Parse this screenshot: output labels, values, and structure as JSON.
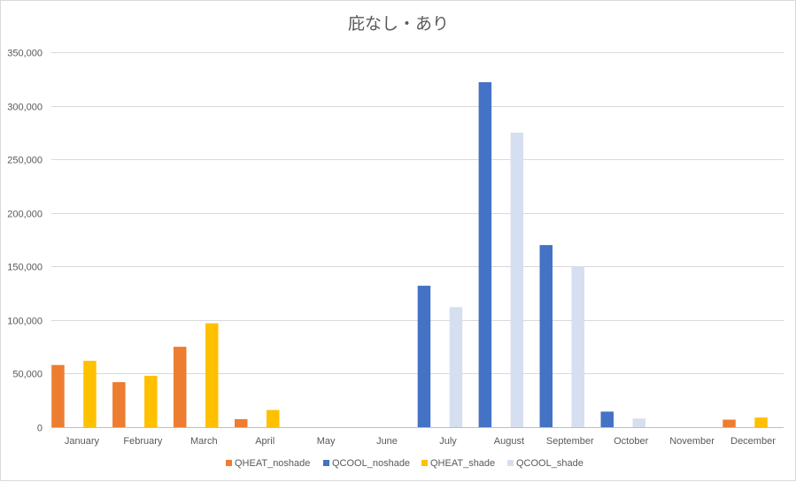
{
  "chart_data": {
    "type": "bar",
    "title": "庇なし・あり",
    "xlabel": "",
    "ylabel": "",
    "ylim": [
      0,
      350000
    ],
    "yticks": [
      0,
      50000,
      100000,
      150000,
      200000,
      250000,
      300000,
      350000
    ],
    "ytick_labels": [
      "0",
      "50,000",
      "100,000",
      "150,000",
      "200,000",
      "250,000",
      "300,000",
      "350,000"
    ],
    "grid": true,
    "legend_position": "bottom",
    "categories": [
      "January",
      "February",
      "March",
      "April",
      "May",
      "June",
      "July",
      "August",
      "September",
      "October",
      "November",
      "December"
    ],
    "series": [
      {
        "name": "QHEAT_noshade",
        "color": "#ed7d31",
        "values": [
          58000,
          42000,
          75000,
          7500,
          0,
          0,
          0,
          0,
          0,
          0,
          0,
          7000
        ]
      },
      {
        "name": "QCOOL_noshade",
        "color": "#4472c4",
        "values": [
          0,
          0,
          0,
          0,
          0,
          0,
          132000,
          322000,
          170000,
          14500,
          0,
          0
        ]
      },
      {
        "name": "QHEAT_shade",
        "color": "#ffc000",
        "values": [
          62000,
          48000,
          97000,
          16000,
          0,
          0,
          0,
          0,
          0,
          0,
          0,
          9000
        ]
      },
      {
        "name": "QCOOL_shade",
        "color": "#d6dff0",
        "values": [
          0,
          0,
          0,
          0,
          0,
          0,
          112000,
          275000,
          150000,
          8000,
          0,
          0
        ]
      }
    ]
  }
}
